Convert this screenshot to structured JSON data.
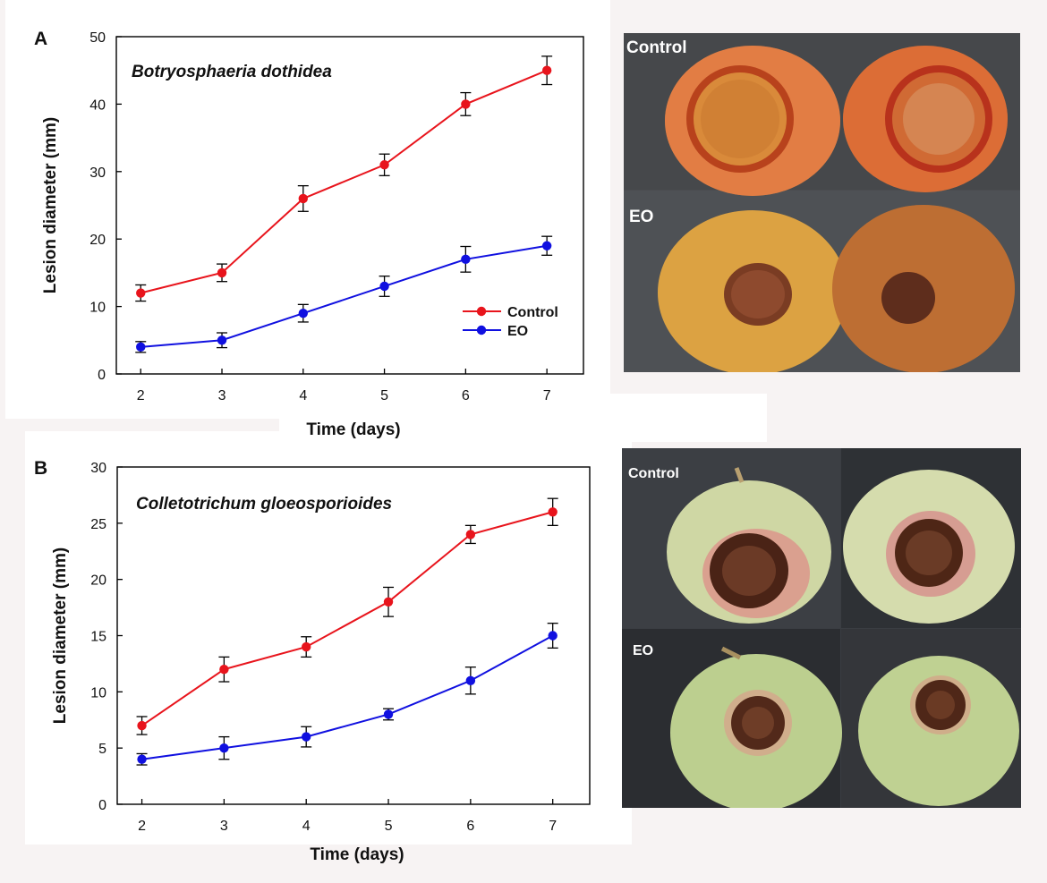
{
  "colors": {
    "control": "#e8141c",
    "eo": "#1010e0"
  },
  "panel_a": {
    "letter": "A",
    "photo_labels": {
      "top": "Control",
      "bottom": "EO"
    }
  },
  "panel_b": {
    "letter": "B",
    "photo_labels": {
      "top": "Control",
      "bottom": "EO"
    }
  },
  "chart_data": [
    {
      "type": "line",
      "title": "Botryosphaeria dothidea",
      "xlabel": "Time (days)",
      "ylabel": "Lesion diameter (mm)",
      "x": [
        2,
        3,
        4,
        5,
        6,
        7
      ],
      "ylim": [
        0,
        50
      ],
      "yticks": [
        0,
        10,
        20,
        30,
        40,
        50
      ],
      "legend_position": "right-middle",
      "series": [
        {
          "name": "Control",
          "color": "#e8141c",
          "values": [
            12,
            15,
            26,
            31,
            40,
            45
          ],
          "errors": [
            1.2,
            1.3,
            1.9,
            1.6,
            1.7,
            2.1
          ]
        },
        {
          "name": "EO",
          "color": "#1010e0",
          "values": [
            4,
            5,
            9,
            13,
            17,
            19
          ],
          "errors": [
            0.8,
            1.1,
            1.3,
            1.5,
            1.9,
            1.4
          ]
        }
      ]
    },
    {
      "type": "line",
      "title": "Colletotrichum gloeosporioides",
      "xlabel": "Time (days)",
      "ylabel": "Lesion diameter (mm)",
      "x": [
        2,
        3,
        4,
        5,
        6,
        7
      ],
      "ylim": [
        0,
        30
      ],
      "yticks": [
        0,
        5,
        10,
        15,
        20,
        25,
        30
      ],
      "series": [
        {
          "name": "Control",
          "color": "#e8141c",
          "values": [
            7,
            12,
            14,
            18,
            24,
            26
          ],
          "errors": [
            0.8,
            1.1,
            0.9,
            1.3,
            0.8,
            1.2
          ]
        },
        {
          "name": "EO",
          "color": "#1010e0",
          "values": [
            4,
            5,
            6,
            8,
            11,
            15
          ],
          "errors": [
            0.5,
            1.0,
            0.9,
            0.5,
            1.2,
            1.1
          ]
        }
      ]
    }
  ]
}
